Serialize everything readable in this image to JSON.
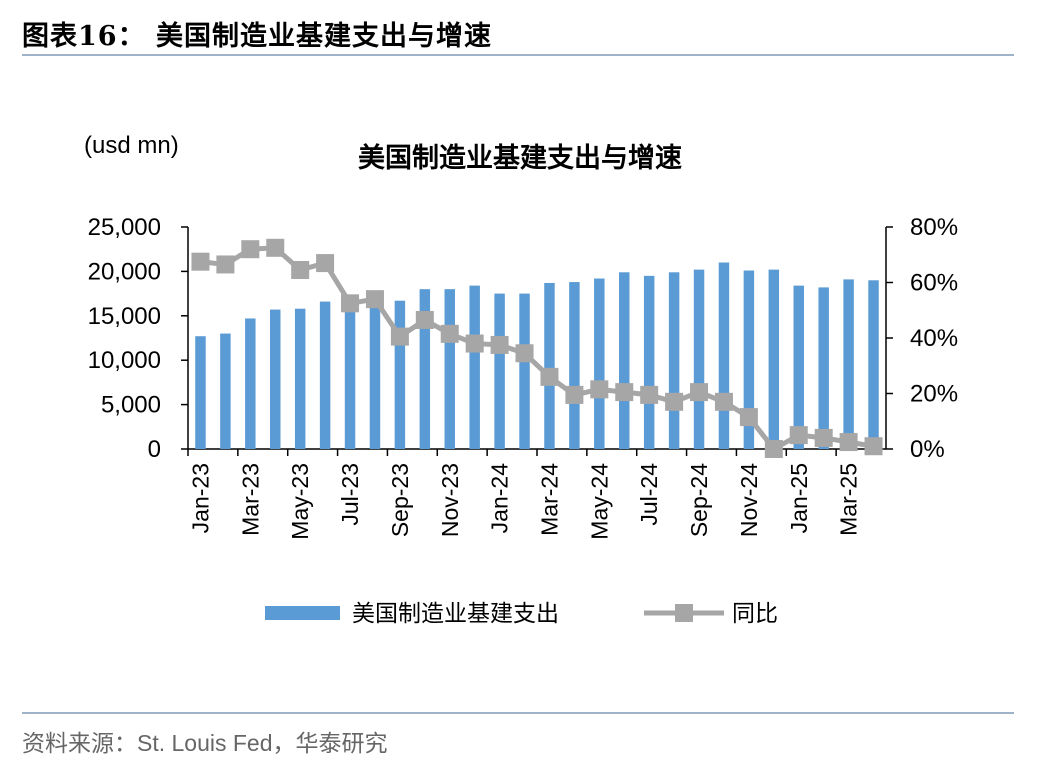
{
  "figure_title": "图表16：  美国制造业基建支出与增速",
  "source": "资料来源：St. Louis Fed，华泰研究",
  "chart_data": {
    "type": "bar+line",
    "title": "美国制造业基建支出与增速",
    "y_left_unit": "(usd mn)",
    "y_left_lim": [
      0,
      25000
    ],
    "y_left_ticks": [
      "0",
      "5,000",
      "10,000",
      "15,000",
      "20,000",
      "25,000"
    ],
    "y_right_lim": [
      0,
      0.8
    ],
    "y_right_ticks": [
      "0%",
      "20%",
      "40%",
      "60%",
      "80%"
    ],
    "categories": [
      "Jan-23",
      "Feb-23",
      "Mar-23",
      "Apr-23",
      "May-23",
      "Jun-23",
      "Jul-23",
      "Aug-23",
      "Sep-23",
      "Oct-23",
      "Nov-23",
      "Dec-23",
      "Jan-24",
      "Feb-24",
      "Mar-24",
      "Apr-24",
      "May-24",
      "Jun-24",
      "Jul-24",
      "Aug-24",
      "Sep-24",
      "Oct-24",
      "Nov-24",
      "Dec-24",
      "Jan-25",
      "Feb-25",
      "Mar-25",
      "Apr-25"
    ],
    "x_tick_labels": [
      "Jan-23",
      "Mar-23",
      "May-23",
      "Jul-23",
      "Sep-23",
      "Nov-23",
      "Jan-24",
      "Mar-24",
      "May-24",
      "Jul-24",
      "Sep-24",
      "Nov-24",
      "Jan-25",
      "Mar-25"
    ],
    "series": [
      {
        "name": "美国制造业基建支出",
        "type": "bar",
        "axis": "left",
        "color": "#5b9bd5",
        "values": [
          12700,
          13000,
          14700,
          15700,
          15800,
          16600,
          17100,
          17000,
          16700,
          18000,
          18000,
          18400,
          17500,
          17500,
          18700,
          18800,
          19200,
          19900,
          19500,
          19900,
          20200,
          21000,
          20100,
          20200,
          18400,
          18200,
          19100,
          19000
        ]
      },
      {
        "name": "同比",
        "type": "line",
        "axis": "right",
        "color": "#a6a6a6",
        "values": [
          0.675,
          0.665,
          0.72,
          0.725,
          0.645,
          0.67,
          0.525,
          0.54,
          0.405,
          0.465,
          0.415,
          0.38,
          0.375,
          0.345,
          0.26,
          0.195,
          0.215,
          0.205,
          0.195,
          0.17,
          0.205,
          0.17,
          0.115,
          0.0,
          0.05,
          0.04,
          0.025,
          0.01
        ]
      }
    ],
    "grid": false,
    "legend_position": "bottom"
  }
}
